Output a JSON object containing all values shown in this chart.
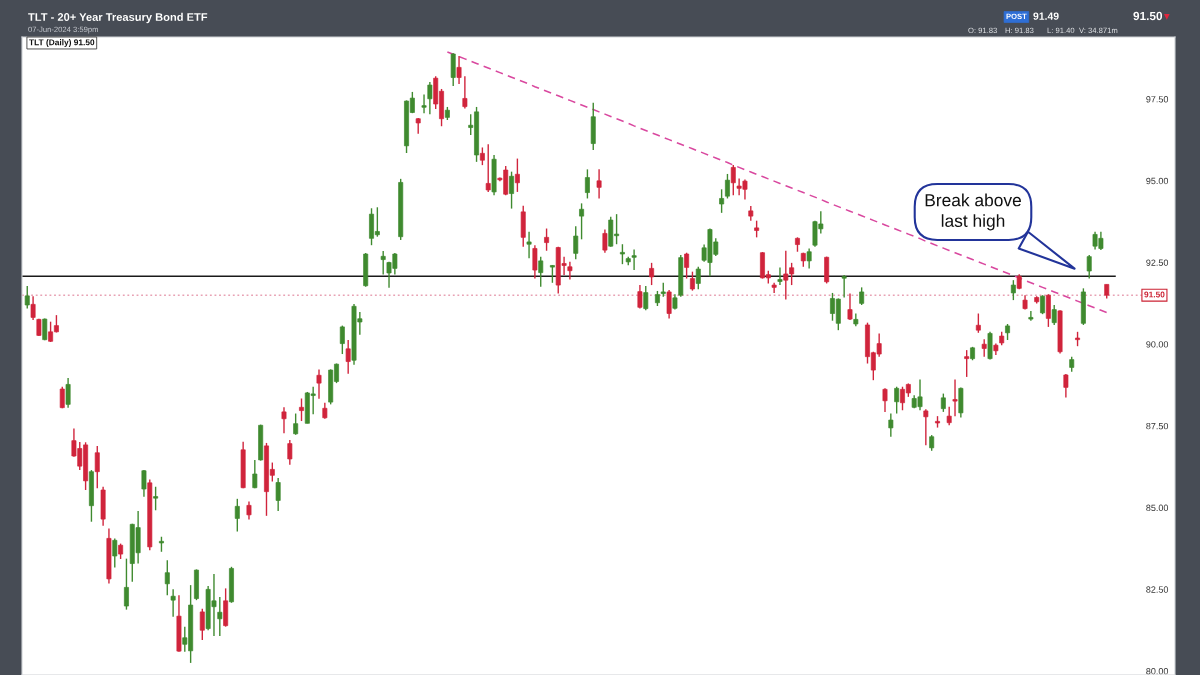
{
  "chart_data": {
    "type": "candlestick",
    "title": "TLT - 20+ Year Treasury Bond ETF",
    "subtitle": "07-Jun-2024 3:59pm",
    "categories": [
      null,
      null,
      null,
      null,
      null,
      null,
      null,
      null,
      null,
      null,
      null,
      null,
      null,
      null,
      null,
      null,
      null,
      null,
      null,
      null,
      null,
      null,
      null,
      null,
      null,
      null,
      null,
      null,
      null,
      null,
      null,
      null,
      null,
      null,
      null,
      null,
      null,
      null,
      null,
      null,
      null,
      null,
      null,
      null,
      null,
      null,
      null,
      null,
      null,
      null,
      null,
      null,
      null,
      null,
      null,
      null,
      null,
      null,
      null,
      null,
      null,
      null,
      null,
      null,
      null,
      null,
      null,
      null,
      null,
      null,
      null,
      null,
      null,
      null,
      null,
      null,
      null,
      null,
      null,
      null,
      null,
      null,
      null,
      null,
      null,
      null,
      null,
      null,
      null,
      null,
      null,
      null,
      null,
      null,
      null,
      null,
      null,
      null,
      null,
      null,
      null,
      null,
      null,
      null,
      null,
      null,
      null,
      null,
      null,
      null,
      null,
      null,
      null,
      null,
      null,
      null,
      null,
      null,
      null,
      null,
      null,
      null,
      null,
      null,
      null,
      null,
      null,
      null,
      null,
      null,
      null,
      null,
      null,
      null,
      null,
      null,
      null,
      null,
      null,
      null,
      null,
      null,
      null,
      null,
      null,
      null,
      null,
      null,
      null,
      null,
      null,
      null,
      null,
      null,
      null,
      null,
      null,
      null,
      null,
      null,
      null,
      null,
      null,
      null,
      null,
      null,
      null,
      null,
      null,
      null,
      null,
      null,
      null,
      null,
      null,
      null,
      null,
      null,
      null,
      null,
      null,
      null,
      null,
      null,
      null,
      null
    ],
    "ohlc": [
      [
        91.2,
        91.78,
        91.09,
        91.48
      ],
      [
        91.22,
        91.47,
        90.74,
        90.82
      ],
      [
        90.76,
        90.78,
        90.25,
        90.27
      ],
      [
        90.14,
        90.79,
        90.12,
        90.77
      ],
      [
        90.38,
        90.69,
        90.07,
        90.09
      ],
      [
        90.57,
        90.89,
        90.36,
        90.38
      ],
      [
        88.63,
        88.7,
        88.04,
        88.06
      ],
      [
        88.16,
        88.97,
        88.06,
        88.77
      ],
      [
        87.05,
        87.42,
        86.56,
        86.58
      ],
      [
        86.81,
        87.01,
        86.15,
        86.27
      ],
      [
        86.92,
        87.0,
        85.54,
        85.82
      ],
      [
        85.06,
        86.15,
        84.57,
        86.1
      ],
      [
        86.68,
        86.89,
        85.59,
        86.1
      ],
      [
        85.54,
        85.64,
        84.45,
        84.65
      ],
      [
        84.06,
        84.36,
        82.68,
        82.82
      ],
      [
        83.52,
        84.06,
        83.17,
        84.0
      ],
      [
        83.85,
        83.9,
        83.43,
        83.58
      ],
      [
        81.99,
        83.44,
        81.88,
        82.56
      ],
      [
        83.29,
        84.51,
        82.73,
        84.49
      ],
      [
        83.62,
        84.9,
        83.29,
        84.39
      ],
      [
        85.57,
        86.15,
        85.33,
        86.13
      ],
      [
        85.76,
        85.86,
        83.7,
        83.8
      ],
      [
        85.29,
        85.64,
        84.92,
        85.34
      ],
      [
        83.92,
        84.11,
        83.65,
        83.97
      ],
      [
        82.67,
        83.39,
        82.32,
        83.01
      ],
      [
        82.17,
        82.5,
        81.66,
        82.29
      ],
      [
        81.68,
        82.32,
        80.59,
        80.61
      ],
      [
        80.82,
        81.36,
        80.59,
        81.02
      ],
      [
        80.62,
        82.63,
        80.25,
        82.02
      ],
      [
        82.22,
        83.11,
        82.17,
        83.09
      ],
      [
        81.81,
        81.91,
        80.95,
        81.25
      ],
      [
        81.3,
        82.6,
        81.25,
        82.5
      ],
      [
        81.97,
        82.97,
        81.07,
        82.15
      ],
      [
        81.6,
        82.27,
        81.07,
        81.8
      ],
      [
        82.15,
        82.53,
        81.36,
        81.39
      ],
      [
        82.12,
        83.19,
        82.09,
        83.14
      ],
      [
        84.67,
        85.27,
        84.27,
        85.04
      ],
      [
        86.77,
        87.02,
        85.59,
        85.61
      ],
      [
        85.07,
        85.19,
        84.64,
        84.78
      ],
      [
        85.61,
        86.46,
        85.59,
        86.03
      ],
      [
        86.46,
        87.54,
        86.44,
        87.52
      ],
      [
        86.89,
        86.98,
        84.75,
        85.49
      ],
      [
        86.17,
        86.38,
        85.8,
        85.99
      ],
      [
        85.22,
        85.91,
        84.9,
        85.77
      ],
      [
        87.93,
        88.07,
        87.28,
        87.72
      ],
      [
        86.96,
        87.07,
        86.31,
        86.49
      ],
      [
        87.26,
        87.88,
        87.23,
        87.57
      ],
      [
        88.07,
        88.34,
        87.65,
        87.97
      ],
      [
        87.58,
        88.54,
        87.58,
        88.51
      ],
      [
        88.43,
        88.7,
        87.86,
        88.48
      ],
      [
        89.05,
        89.23,
        88.33,
        88.81
      ],
      [
        88.04,
        88.21,
        87.72,
        87.75
      ],
      [
        88.23,
        89.23,
        88.16,
        89.21
      ],
      [
        88.86,
        89.41,
        88.81,
        89.39
      ],
      [
        90.02,
        90.57,
        89.7,
        90.53
      ],
      [
        89.86,
        90.13,
        89.1,
        89.47
      ],
      [
        89.51,
        91.23,
        89.37,
        91.16
      ],
      [
        90.68,
        90.99,
        90.29,
        90.78
      ],
      [
        91.79,
        92.79,
        91.76,
        92.76
      ],
      [
        93.24,
        94.16,
        93.03,
        93.98
      ],
      [
        93.35,
        94.19,
        93.29,
        93.45
      ],
      [
        92.59,
        92.85,
        92.13,
        92.69
      ],
      [
        92.18,
        92.52,
        91.73,
        92.5
      ],
      [
        92.32,
        92.79,
        92.13,
        92.76
      ],
      [
        93.29,
        95.06,
        93.19,
        94.95
      ],
      [
        96.07,
        97.46,
        95.85,
        97.44
      ],
      [
        97.09,
        97.72,
        97.07,
        97.53
      ],
      [
        96.9,
        96.92,
        96.44,
        96.77
      ],
      [
        97.25,
        97.64,
        97.07,
        97.3
      ],
      [
        97.51,
        98.02,
        97.04,
        97.93
      ],
      [
        98.14,
        98.2,
        97.2,
        97.35
      ],
      [
        97.74,
        97.81,
        96.67,
        96.9
      ],
      [
        96.94,
        97.26,
        96.86,
        97.16
      ],
      [
        98.16,
        98.9,
        97.9,
        98.88
      ],
      [
        98.47,
        98.82,
        97.96,
        98.16
      ],
      [
        97.52,
        98.2,
        97.21,
        97.27
      ],
      [
        96.63,
        97.04,
        96.4,
        96.7
      ],
      [
        95.79,
        97.26,
        95.58,
        97.11
      ],
      [
        95.84,
        96.02,
        95.48,
        95.63
      ],
      [
        94.92,
        96.12,
        94.66,
        94.72
      ],
      [
        94.66,
        95.79,
        94.56,
        95.66
      ],
      [
        95.08,
        95.1,
        94.99,
        95.03
      ],
      [
        95.33,
        95.45,
        94.56,
        94.59
      ],
      [
        94.61,
        95.28,
        94.15,
        95.14
      ],
      [
        95.2,
        95.68,
        94.66,
        94.94
      ],
      [
        94.05,
        94.24,
        92.98,
        93.27
      ],
      [
        93.06,
        93.44,
        92.63,
        93.13
      ],
      [
        92.93,
        93.03,
        92.01,
        92.27
      ],
      [
        92.19,
        92.68,
        91.76,
        92.55
      ],
      [
        93.27,
        93.54,
        92.86,
        93.11
      ],
      [
        92.36,
        92.42,
        91.88,
        92.41
      ],
      [
        92.96,
        92.98,
        91.55,
        91.81
      ],
      [
        92.47,
        92.68,
        92.12,
        92.41
      ],
      [
        92.37,
        92.52,
        91.98,
        92.25
      ],
      [
        92.78,
        93.61,
        92.6,
        93.31
      ],
      [
        93.92,
        94.31,
        93.21,
        94.13
      ],
      [
        94.64,
        95.35,
        94.46,
        95.1
      ],
      [
        96.14,
        97.39,
        95.94,
        96.96
      ],
      [
        95.0,
        95.35,
        94.46,
        94.8
      ],
      [
        93.39,
        93.51,
        92.8,
        92.88
      ],
      [
        93.0,
        93.9,
        92.98,
        93.8
      ],
      [
        93.32,
        93.98,
        93.06,
        93.37
      ],
      [
        92.76,
        93.06,
        92.45,
        92.81
      ],
      [
        92.52,
        92.68,
        92.42,
        92.62
      ],
      [
        92.66,
        92.9,
        92.27,
        92.71
      ],
      [
        91.61,
        91.81,
        91.09,
        91.13
      ],
      [
        91.09,
        91.78,
        91.04,
        91.58
      ],
      [
        92.32,
        92.49,
        91.81,
        92.06
      ],
      [
        91.27,
        91.63,
        91.17,
        91.52
      ],
      [
        91.55,
        91.88,
        91.45,
        91.6
      ],
      [
        91.6,
        91.66,
        90.79,
        90.94
      ],
      [
        91.1,
        91.53,
        91.06,
        91.42
      ],
      [
        91.5,
        92.73,
        91.45,
        92.65
      ],
      [
        92.76,
        92.8,
        92.01,
        92.35
      ],
      [
        92.01,
        92.22,
        91.64,
        91.69
      ],
      [
        91.86,
        92.37,
        91.68,
        92.3
      ],
      [
        92.57,
        93.05,
        92.52,
        92.95
      ],
      [
        92.5,
        93.54,
        92.08,
        93.51
      ],
      [
        92.75,
        93.24,
        92.7,
        93.13
      ],
      [
        94.29,
        94.74,
        94.02,
        94.46
      ],
      [
        94.53,
        95.21,
        94.46,
        95.02
      ],
      [
        95.41,
        95.48,
        94.56,
        94.94
      ],
      [
        94.84,
        95.07,
        94.56,
        94.77
      ],
      [
        94.99,
        95.04,
        94.43,
        94.74
      ],
      [
        94.08,
        94.23,
        93.78,
        93.92
      ],
      [
        93.56,
        93.78,
        93.27,
        93.48
      ],
      [
        92.8,
        92.82,
        92.01,
        92.03
      ],
      [
        92.13,
        92.25,
        91.86,
        92.03
      ],
      [
        91.81,
        91.88,
        91.57,
        91.74
      ],
      [
        91.92,
        92.35,
        91.81,
        91.98
      ],
      [
        92.15,
        92.86,
        91.37,
        91.96
      ],
      [
        92.34,
        92.49,
        91.81,
        92.15
      ],
      [
        93.24,
        93.27,
        92.83,
        93.05
      ],
      [
        92.78,
        92.8,
        92.37,
        92.55
      ],
      [
        92.55,
        92.93,
        92.32,
        92.83
      ],
      [
        93.03,
        93.78,
        92.98,
        93.75
      ],
      [
        93.53,
        94.07,
        93.39,
        93.68
      ],
      [
        92.66,
        92.68,
        91.86,
        91.91
      ],
      [
        90.94,
        91.57,
        90.72,
        91.4
      ],
      [
        90.64,
        91.4,
        90.43,
        91.38
      ],
      [
        92.02,
        92.12,
        91.43,
        92.07
      ],
      [
        91.06,
        91.55,
        90.74,
        90.77
      ],
      [
        90.62,
        90.94,
        90.55,
        90.76
      ],
      [
        91.25,
        91.74,
        91.2,
        91.6
      ],
      [
        90.59,
        90.66,
        89.41,
        89.62
      ],
      [
        89.74,
        89.77,
        88.9,
        89.21
      ],
      [
        90.02,
        90.33,
        89.62,
        89.7
      ],
      [
        88.62,
        88.65,
        87.93,
        88.27
      ],
      [
        87.44,
        87.88,
        87.17,
        87.68
      ],
      [
        88.24,
        88.7,
        87.88,
        88.65
      ],
      [
        88.62,
        88.7,
        87.98,
        88.21
      ],
      [
        88.77,
        88.8,
        88.39,
        88.51
      ],
      [
        88.07,
        88.44,
        88.04,
        88.34
      ],
      [
        88.09,
        88.92,
        87.98,
        88.39
      ],
      [
        87.96,
        88.01,
        86.91,
        87.78
      ],
      [
        86.83,
        87.22,
        86.74,
        87.17
      ],
      [
        87.64,
        87.8,
        87.45,
        87.59
      ],
      [
        88.03,
        88.49,
        87.93,
        88.36
      ],
      [
        87.8,
        88.09,
        87.52,
        87.6
      ],
      [
        88.31,
        88.92,
        87.8,
        88.26
      ],
      [
        87.9,
        88.68,
        87.76,
        88.65
      ],
      [
        89.62,
        89.82,
        89.0,
        89.56
      ],
      [
        89.56,
        89.92,
        89.51,
        89.89
      ],
      [
        90.58,
        90.94,
        90.35,
        90.43
      ],
      [
        90.0,
        90.15,
        89.62,
        89.87
      ],
      [
        89.56,
        90.38,
        89.53,
        90.33
      ],
      [
        89.97,
        90.02,
        89.67,
        89.8
      ],
      [
        90.25,
        90.38,
        89.97,
        90.04
      ],
      [
        90.35,
        90.62,
        90.13,
        90.56
      ],
      [
        91.57,
        91.96,
        91.35,
        91.81
      ],
      [
        92.08,
        92.14,
        91.68,
        91.71
      ],
      [
        91.35,
        91.5,
        91.06,
        91.09
      ],
      [
        90.77,
        91.02,
        90.72,
        90.82
      ],
      [
        91.43,
        91.47,
        91.25,
        91.3
      ],
      [
        90.96,
        91.5,
        90.92,
        91.47
      ],
      [
        91.5,
        91.53,
        90.53,
        90.79
      ],
      [
        90.66,
        91.2,
        90.59,
        91.06
      ],
      [
        91.02,
        91.04,
        89.72,
        89.77
      ],
      [
        89.06,
        89.09,
        88.37,
        88.68
      ],
      [
        89.29,
        89.62,
        89.16,
        89.53
      ],
      [
        90.19,
        90.38,
        89.94,
        90.14
      ],
      [
        90.64,
        91.71,
        90.59,
        91.6
      ],
      [
        92.24,
        92.73,
        92.01,
        92.68
      ],
      [
        93.0,
        93.44,
        92.9,
        93.36
      ],
      [
        92.93,
        93.44,
        92.88,
        93.24
      ],
      [
        91.83,
        91.83,
        91.4,
        91.5
      ]
    ],
    "colors": [
      "#3f8a2f",
      "#d0243c",
      "#d0243c",
      "#3f8a2f",
      "#d0243c",
      "#d0243c",
      "#d0243c",
      "#3f8a2f",
      "#d0243c",
      "#d0243c",
      "#d0243c",
      "#3f8a2f",
      "#d0243c",
      "#d0243c",
      "#d0243c",
      "#3f8a2f",
      "#d0243c",
      "#3f8a2f",
      "#3f8a2f",
      "#3f8a2f",
      "#3f8a2f",
      "#d0243c",
      "#3f8a2f",
      "#3f8a2f",
      "#3f8a2f",
      "#3f8a2f",
      "#d0243c",
      "#3f8a2f",
      "#3f8a2f",
      "#3f8a2f",
      "#d0243c",
      "#3f8a2f",
      "#3f8a2f",
      "#3f8a2f",
      "#d0243c",
      "#3f8a2f",
      "#3f8a2f",
      "#d0243c",
      "#d0243c",
      "#3f8a2f",
      "#3f8a2f",
      "#d0243c",
      "#d0243c",
      "#3f8a2f",
      "#d0243c",
      "#d0243c",
      "#3f8a2f",
      "#d0243c",
      "#3f8a2f",
      "#3f8a2f",
      "#d0243c",
      "#d0243c",
      "#3f8a2f",
      "#3f8a2f",
      "#3f8a2f",
      "#d0243c",
      "#3f8a2f",
      "#3f8a2f",
      "#3f8a2f",
      "#3f8a2f",
      "#3f8a2f",
      "#3f8a2f",
      "#3f8a2f",
      "#3f8a2f",
      "#3f8a2f",
      "#3f8a2f",
      "#3f8a2f",
      "#d0243c",
      "#3f8a2f",
      "#3f8a2f",
      "#d0243c",
      "#d0243c",
      "#3f8a2f",
      "#3f8a2f",
      "#d0243c",
      "#d0243c",
      "#3f8a2f",
      "#3f8a2f",
      "#d0243c",
      "#d0243c",
      "#3f8a2f",
      "#d0243c",
      "#d0243c",
      "#3f8a2f",
      "#d0243c",
      "#d0243c",
      "#3f8a2f",
      "#d0243c",
      "#3f8a2f",
      "#d0243c",
      "#3f8a2f",
      "#d0243c",
      "#d0243c",
      "#d0243c",
      "#3f8a2f",
      "#3f8a2f",
      "#3f8a2f",
      "#3f8a2f",
      "#d0243c",
      "#d0243c",
      "#3f8a2f",
      "#3f8a2f",
      "#3f8a2f",
      "#3f8a2f",
      "#3f8a2f",
      "#d0243c",
      "#3f8a2f",
      "#d0243c",
      "#3f8a2f",
      "#3f8a2f",
      "#d0243c",
      "#3f8a2f",
      "#3f8a2f",
      "#d0243c",
      "#d0243c",
      "#3f8a2f",
      "#3f8a2f",
      "#3f8a2f",
      "#3f8a2f",
      "#3f8a2f",
      "#3f8a2f",
      "#d0243c",
      "#d0243c",
      "#d0243c",
      "#d0243c",
      "#d0243c",
      "#d0243c",
      "#d0243c",
      "#d0243c",
      "#3f8a2f",
      "#d0243c",
      "#d0243c",
      "#d0243c",
      "#d0243c",
      "#3f8a2f",
      "#3f8a2f",
      "#3f8a2f",
      "#d0243c",
      "#3f8a2f",
      "#3f8a2f",
      "#3f8a2f",
      "#d0243c",
      "#3f8a2f",
      "#3f8a2f",
      "#d0243c",
      "#d0243c",
      "#d0243c",
      "#d0243c",
      "#3f8a2f",
      "#3f8a2f",
      "#d0243c",
      "#d0243c",
      "#3f8a2f",
      "#3f8a2f",
      "#d0243c",
      "#3f8a2f",
      "#d0243c",
      "#3f8a2f",
      "#d0243c",
      "#d0243c",
      "#3f8a2f",
      "#d0243c",
      "#3f8a2f",
      "#d0243c",
      "#d0243c",
      "#3f8a2f",
      "#d0243c",
      "#d0243c",
      "#3f8a2f",
      "#3f8a2f",
      "#d0243c",
      "#d0243c",
      "#3f8a2f",
      "#d0243c",
      "#3f8a2f",
      "#d0243c",
      "#3f8a2f",
      "#d0243c",
      "#d0243c",
      "#3f8a2f",
      "#d0243c",
      "#3f8a2f",
      "#3f8a2f",
      "#3f8a2f",
      "#3f8a2f",
      "#d0243c"
    ],
    "series": [
      {
        "type": "line",
        "color": "#d9489f",
        "line_style": "dashed",
        "values": [
          null,
          null,
          null,
          null,
          null,
          null,
          null,
          null,
          null,
          null,
          null,
          null,
          null,
          null,
          null,
          null,
          null,
          null,
          null,
          null,
          null,
          null,
          null,
          null,
          null,
          null,
          null,
          null,
          null,
          null,
          null,
          null,
          null,
          null,
          null,
          null,
          null,
          null,
          null,
          null,
          null,
          null,
          null,
          null,
          null,
          null,
          null,
          null,
          null,
          null,
          null,
          null,
          null,
          null,
          null,
          null,
          null,
          null,
          null,
          null,
          null,
          null,
          null,
          null,
          null,
          null,
          null,
          null,
          null,
          null,
          null,
          null,
          98.94,
          98.87,
          98.8,
          98.73,
          98.66,
          98.59,
          98.52,
          98.45,
          98.38,
          98.31,
          98.24,
          98.17,
          98.1,
          98.03,
          97.96,
          97.88,
          97.81,
          97.74,
          97.67,
          97.6,
          97.53,
          97.46,
          97.39,
          97.32,
          97.25,
          97.18,
          97.11,
          97.04,
          96.97,
          96.9,
          96.83,
          96.76,
          96.68,
          96.61,
          96.54,
          96.47,
          96.4,
          96.33,
          96.26,
          96.19,
          96.12,
          96.05,
          95.98,
          95.91,
          95.84,
          95.77,
          95.7,
          95.63,
          95.56,
          95.48,
          95.41,
          95.34,
          95.27,
          95.2,
          95.13,
          95.06,
          94.99,
          94.92,
          94.85,
          94.78,
          94.71,
          94.64,
          94.57,
          94.5,
          94.43,
          94.35,
          94.28,
          94.21,
          94.14,
          94.07,
          94.0,
          93.93,
          93.86,
          93.79,
          93.72,
          93.65,
          93.58,
          93.51,
          93.44,
          93.37,
          93.3,
          93.23,
          93.15,
          93.08,
          93.01,
          92.94,
          92.87,
          92.8,
          92.73,
          92.66,
          92.59,
          92.52,
          92.45,
          92.38,
          92.31,
          92.24,
          92.17,
          92.1,
          92.03,
          91.95,
          91.88,
          91.81,
          91.74,
          91.67,
          91.6,
          91.53,
          91.46,
          91.39,
          91.32,
          91.25,
          91.18,
          91.11,
          91.04,
          90.97
        ]
      }
    ],
    "ylim": [
      79.88,
      99.4
    ],
    "yticks": [
      {
        "value": 80,
        "label": "80.00"
      },
      {
        "value": 82.5,
        "label": "82.50"
      },
      {
        "value": 85,
        "label": "85.00"
      },
      {
        "value": 87.5,
        "label": "87.50"
      },
      {
        "value": 90,
        "label": "90.00"
      },
      {
        "value": 92.5,
        "label": "92.50"
      },
      {
        "value": 95,
        "label": "95.00"
      },
      {
        "value": 97.5,
        "label": "97.50"
      }
    ],
    "tick_labels": "y",
    "ref_lines": [
      {
        "axis": "y",
        "value": 92.08,
        "color": "#1a1a1a",
        "line_style": "solid"
      },
      {
        "axis": "y",
        "value": 91.5,
        "label": "91.50",
        "color": "#e8a2b4",
        "line_style": "dotted"
      }
    ],
    "annotations": [
      "TLT (Daily) 91.50",
      "Break above\nlast high",
      "POST",
      "91.49",
      "91.50",
      "▼",
      "O: 91.83",
      "H: 91.83",
      "L: 91.40",
      "V: 34.871m"
    ]
  }
}
